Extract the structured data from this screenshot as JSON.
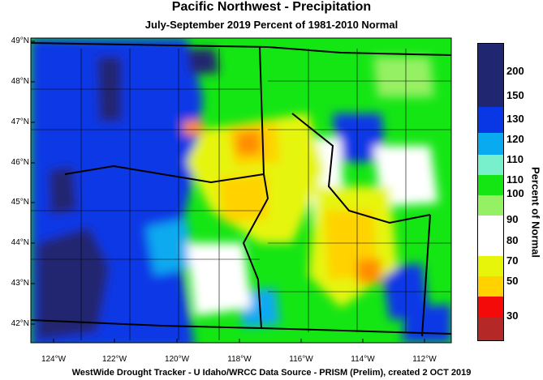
{
  "title": "Pacific Northwest - Precipitation",
  "subtitle": "July-September 2019  Percent of 1981-2010 Normal",
  "footer": "WestWide Drought Tracker - U Idaho/WRCC  Data Source - PRISM (Prelim), created  2 OCT 2019",
  "legend": {
    "title": "Percent of Normal",
    "colors": [
      "#202670",
      "#0a37e6",
      "#0aaaf0",
      "#78f0cc",
      "#14e614",
      "#96f064",
      "#ffffff",
      "#ffffff",
      "#e6f50a",
      "#ffd200",
      "#ff8c00",
      "#f50a0a",
      "#b42828"
    ],
    "labels": [
      "200",
      "150",
      "130",
      "120",
      "110",
      "100",
      "90",
      "80",
      "70",
      "50",
      "30"
    ]
  },
  "lat_labels": [
    "49°N",
    "48°N",
    "47°N",
    "46°N",
    "45°N",
    "44°N",
    "43°N",
    "42°N"
  ],
  "lon_labels": [
    "124°W",
    "122°W",
    "120°W",
    "118°W",
    "116°W",
    "114°W",
    "112°W"
  ]
}
